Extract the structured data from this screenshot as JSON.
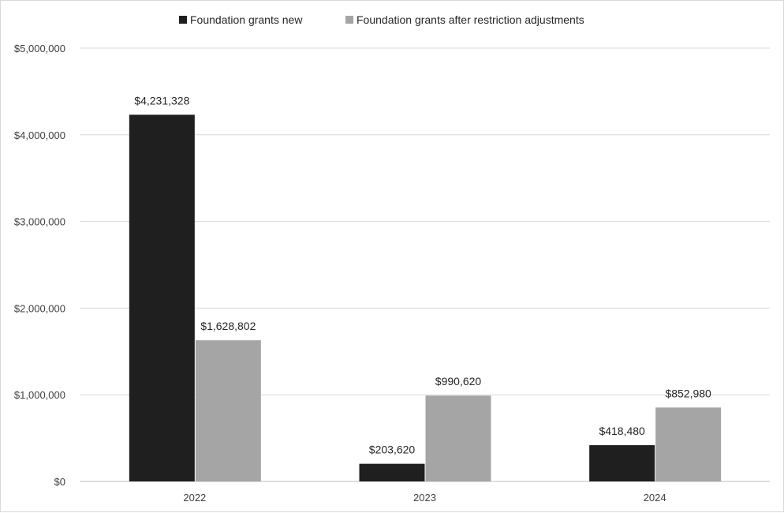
{
  "chart_data": {
    "type": "bar",
    "title": "",
    "xlabel": "",
    "ylabel": "",
    "categories": [
      "2022",
      "2023",
      "2024"
    ],
    "series": [
      {
        "name": "Foundation grants new",
        "values": [
          4231328,
          203620,
          418480
        ],
        "labels": [
          "$4,231,328",
          "$203,620",
          "$418,480"
        ],
        "color": "#1f1f1f"
      },
      {
        "name": "Foundation grants after restriction adjustments",
        "values": [
          1628802,
          990620,
          852980
        ],
        "labels": [
          "$1,628,802",
          "$990,620",
          "$852,980"
        ],
        "color": "#a5a5a5"
      }
    ],
    "ylim": [
      0,
      5000000
    ],
    "yticks": [
      0,
      1000000,
      2000000,
      3000000,
      4000000,
      5000000
    ],
    "ytick_labels": [
      "$0",
      "$1,000,000",
      "$2,000,000",
      "$3,000,000",
      "$4,000,000",
      "$5,000,000"
    ],
    "grid": true,
    "legend_position": "top"
  }
}
